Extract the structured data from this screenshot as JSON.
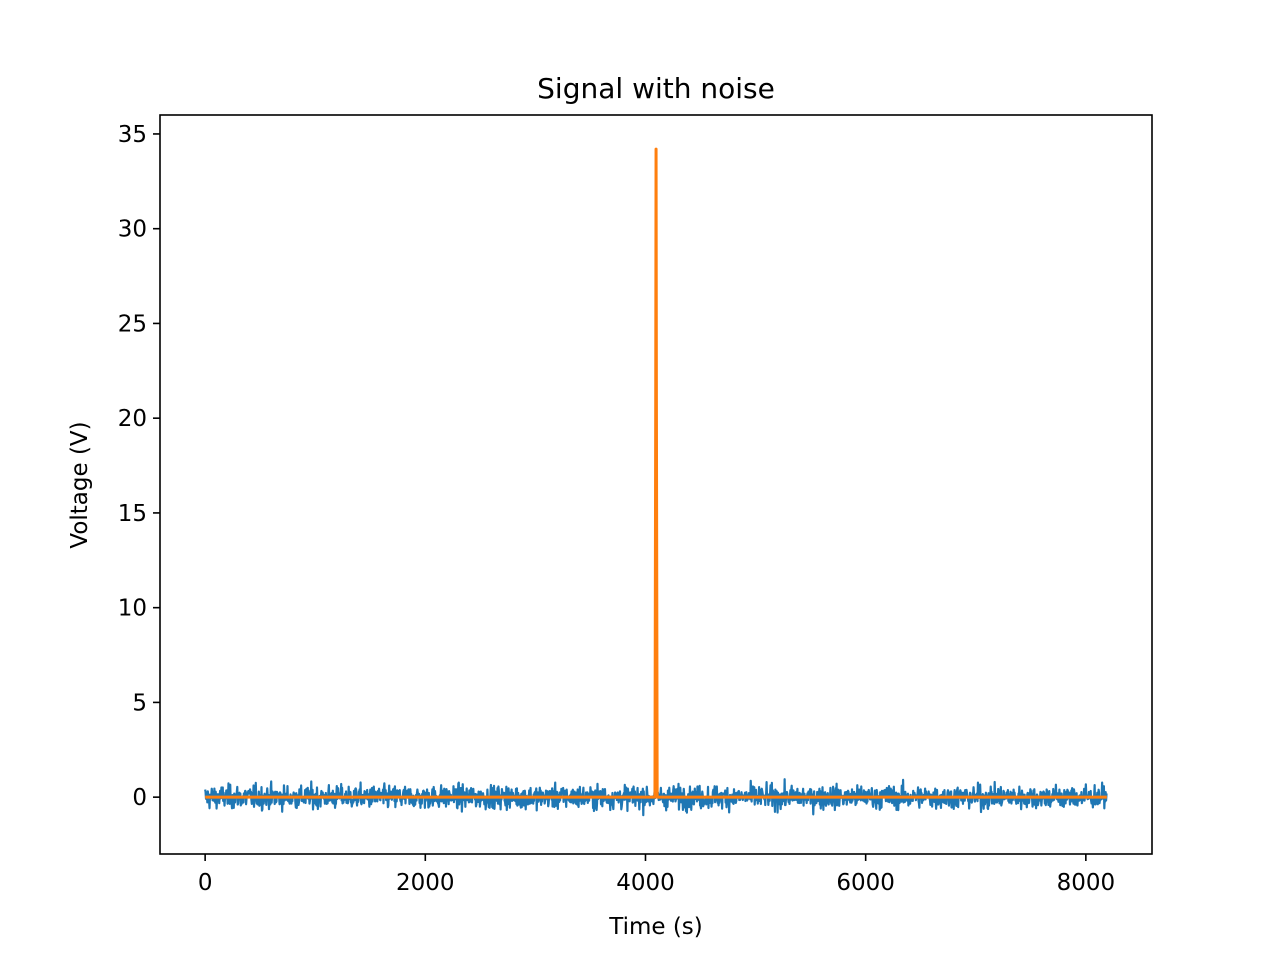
{
  "chart_data": {
    "type": "line",
    "title": "Signal with noise",
    "xlabel": "Time (s)",
    "ylabel": "Voltage (V)",
    "xlim": [
      -410,
      8601
    ],
    "ylim": [
      -3.0,
      36.0
    ],
    "x_ticks": [
      0,
      2000,
      4000,
      6000,
      8000
    ],
    "x_tick_labels": [
      "0",
      "2000",
      "4000",
      "6000",
      "8000"
    ],
    "y_ticks": [
      0,
      5,
      10,
      15,
      20,
      25,
      30,
      35
    ],
    "y_tick_labels": [
      "0",
      "5",
      "10",
      "15",
      "20",
      "25",
      "30",
      "35"
    ],
    "grid": false,
    "legend": "none",
    "series": [
      {
        "color": "#1f77b4",
        "x_range": [
          0,
          8191
        ],
        "noise": {
          "mean": 0.0,
          "std": 0.3,
          "min": -1.2,
          "max": 1.1
        },
        "spike": {
          "x": 4096,
          "y": 34.2
        }
      },
      {
        "color": "#ff7f0e",
        "x": [
          0,
          4086,
          4093,
          4096,
          4099,
          4106,
          8191
        ],
        "y": [
          0,
          0,
          21,
          34.2,
          21,
          0,
          0
        ]
      }
    ]
  }
}
